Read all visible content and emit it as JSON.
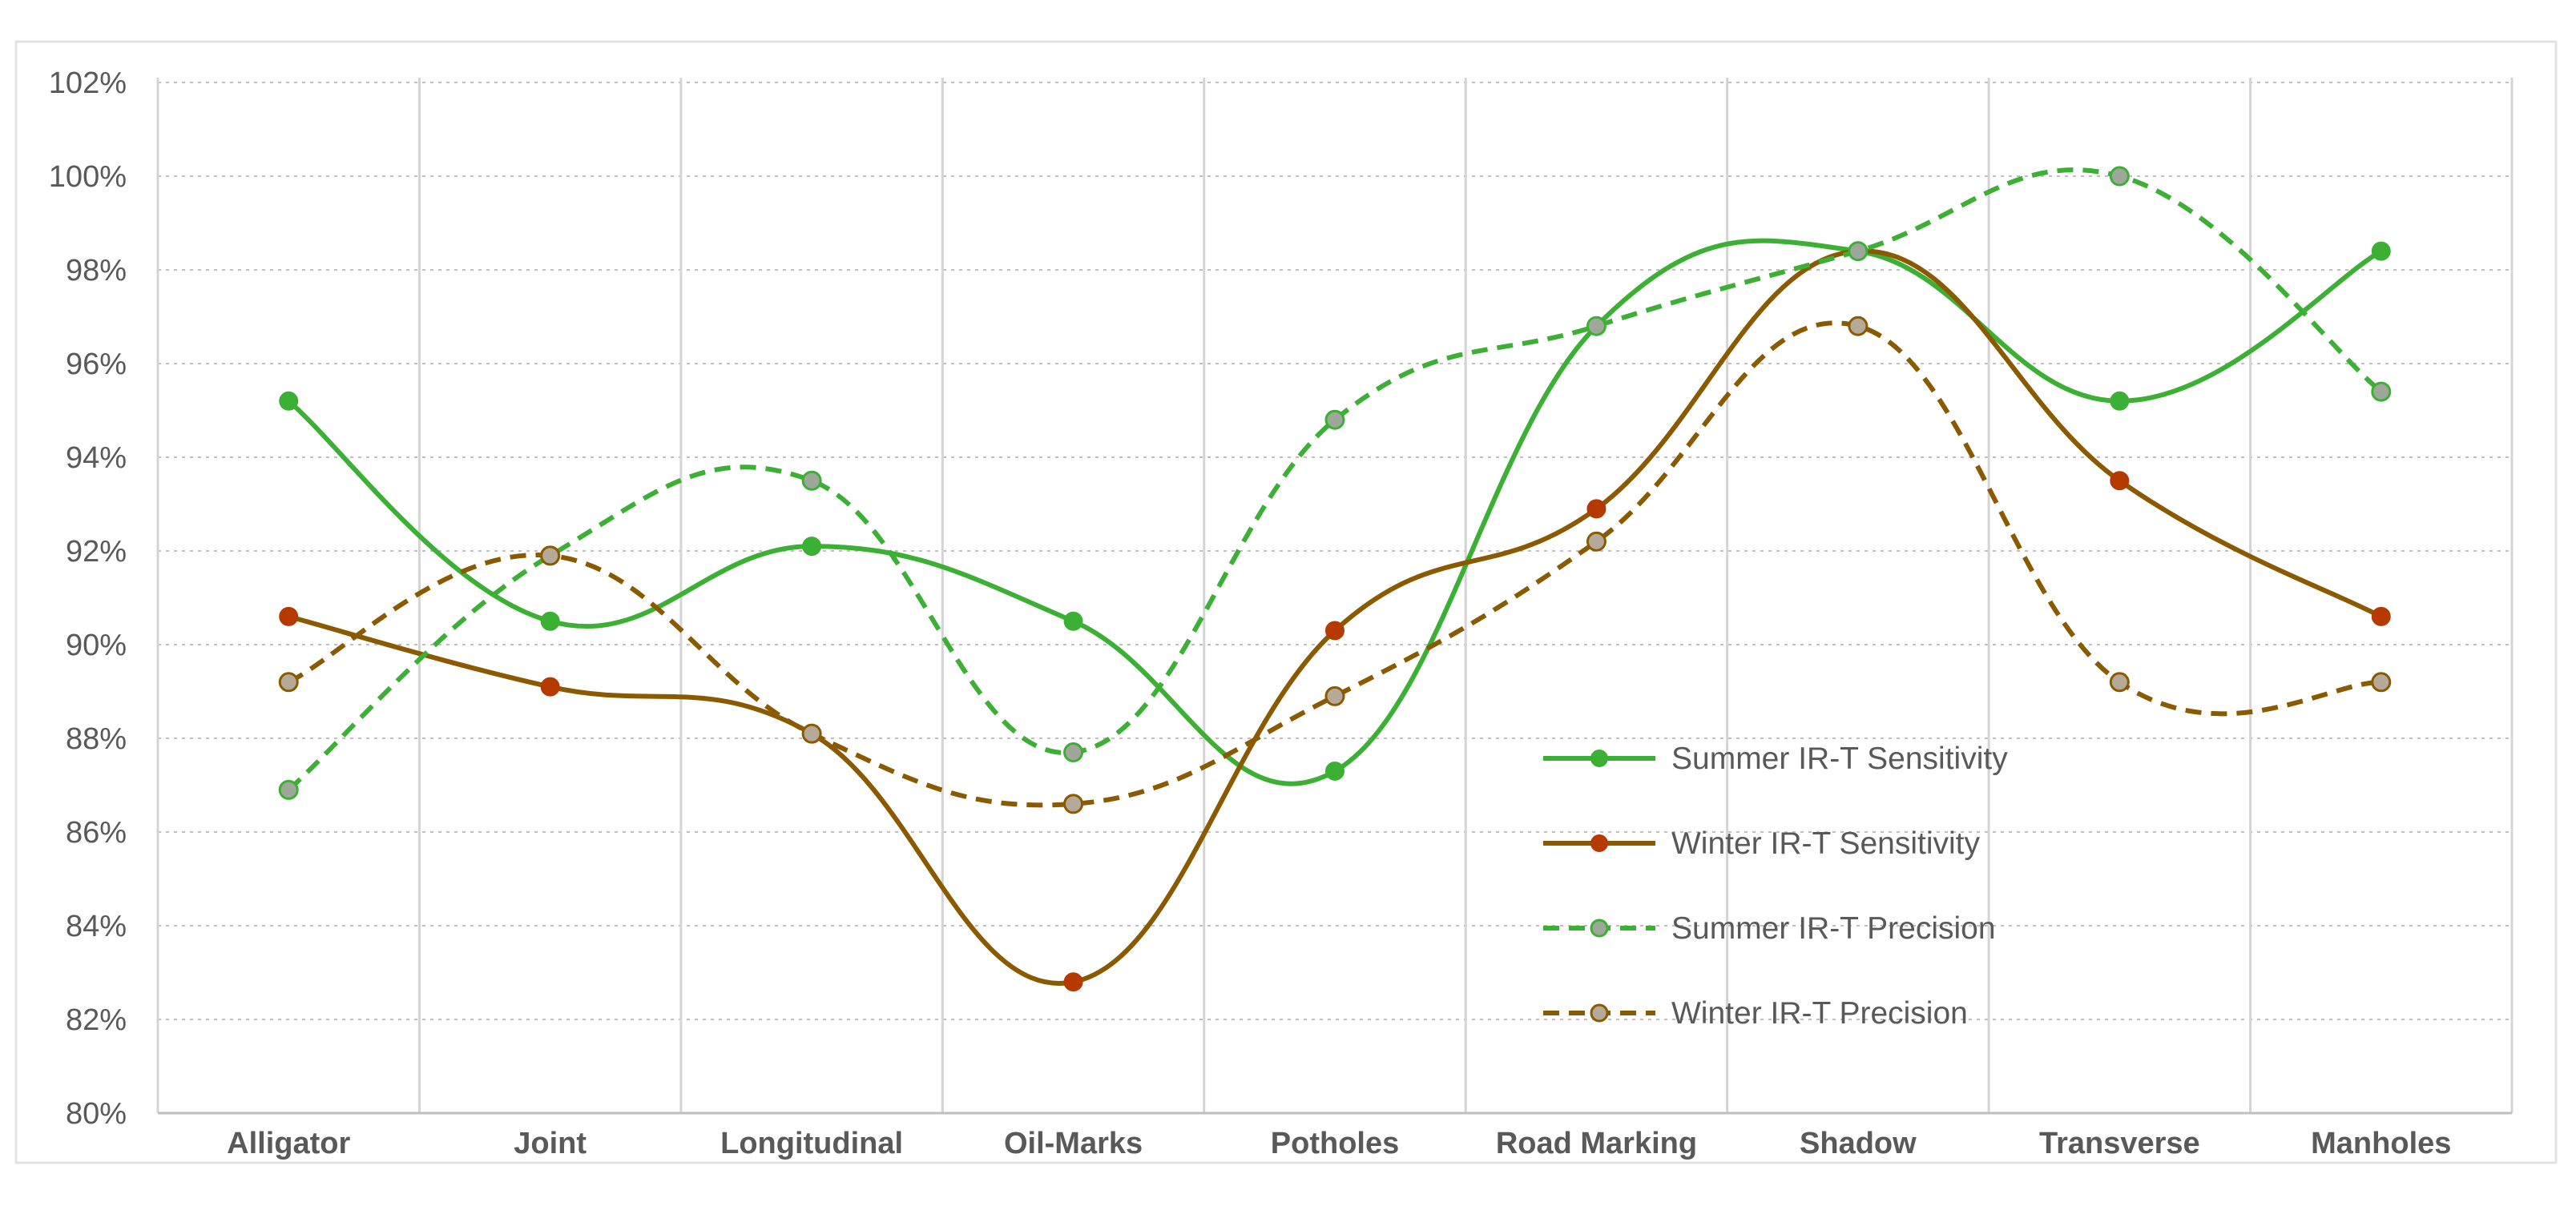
{
  "chart_data": {
    "type": "line",
    "categories": [
      "Alligator",
      "Joint",
      "Longitudinal",
      "Oil-Marks",
      "Potholes",
      "Road Marking",
      "Shadow",
      "Transverse",
      "Manholes"
    ],
    "ylim": [
      80,
      102
    ],
    "y_ticks": [
      80,
      82,
      84,
      86,
      88,
      90,
      92,
      94,
      96,
      98,
      100,
      102
    ],
    "y_tick_labels": [
      "80%",
      "82%",
      "84%",
      "86%",
      "88%",
      "90%",
      "92%",
      "94%",
      "96%",
      "98%",
      "100%",
      "102%"
    ],
    "grid": true,
    "legend_position": "lower-right inside plot",
    "series": [
      {
        "name": "Summer IR-T Sensitivity",
        "values": [
          95.2,
          90.5,
          92.1,
          90.5,
          87.3,
          96.8,
          98.4,
          95.2,
          98.4
        ],
        "color": "#3cb034",
        "marker_fill": "#3cb034",
        "dashed": false
      },
      {
        "name": "Winter IR-T Sensitivity",
        "values": [
          90.6,
          89.1,
          88.1,
          82.8,
          90.3,
          92.9,
          98.4,
          93.5,
          90.6
        ],
        "color": "#8b5a00",
        "marker_fill": "#b53a00",
        "dashed": false
      },
      {
        "name": "Summer IR-T Precision",
        "values": [
          86.9,
          91.9,
          93.5,
          87.7,
          94.8,
          96.8,
          98.4,
          100.0,
          95.4
        ],
        "color": "#3cb034",
        "marker_fill": "#9ea79a",
        "dashed": true
      },
      {
        "name": "Winter IR-T Precision",
        "values": [
          89.2,
          91.9,
          88.1,
          86.6,
          88.9,
          92.2,
          96.8,
          89.2,
          89.2
        ],
        "color": "#8b5a00",
        "marker_fill": "#b5aa9a",
        "dashed": true
      }
    ]
  }
}
